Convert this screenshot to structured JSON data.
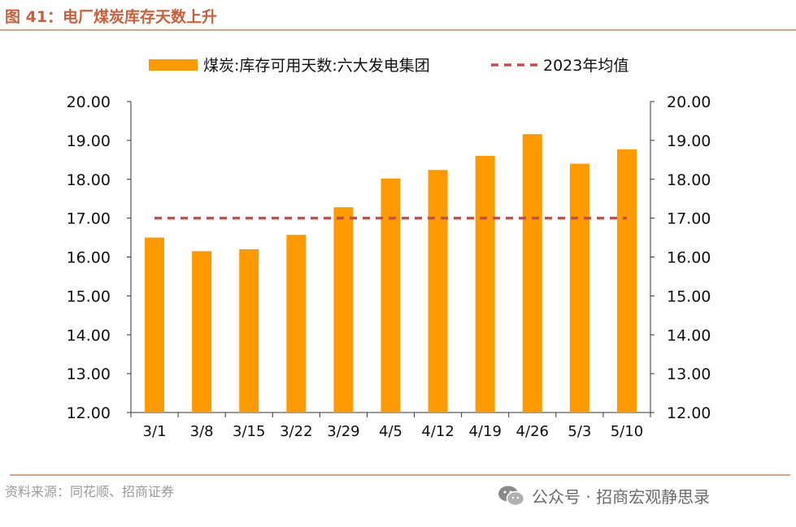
{
  "figure": {
    "title": "图 41：电厂煤炭库存天数上升",
    "source": "资料来源：同花顺、招商证券",
    "watermark": "公众号 · 招商宏观静思录",
    "watermark_icon": "wechat-icon"
  },
  "chart_data": {
    "type": "bar",
    "title": "",
    "xlabel": "",
    "ylabel": "",
    "categories": [
      "3/1",
      "3/8",
      "3/15",
      "3/22",
      "3/29",
      "4/5",
      "4/12",
      "4/19",
      "4/26",
      "5/3",
      "5/10"
    ],
    "series": [
      {
        "name": "煤炭:库存可用天数:六大发电集团",
        "type": "bar",
        "color": "#FF9900",
        "values": [
          16.5,
          16.15,
          16.2,
          16.57,
          17.28,
          18.02,
          18.24,
          18.6,
          19.16,
          18.4,
          18.77
        ]
      },
      {
        "name": "2023年均值",
        "type": "line",
        "style": "dashed",
        "color": "#C0504D",
        "values": [
          17.0,
          17.0,
          17.0,
          17.0,
          17.0,
          17.0,
          17.0,
          17.0,
          17.0,
          17.0,
          17.0
        ]
      }
    ],
    "ylim": [
      12,
      20
    ],
    "yticks": [
      "12.00",
      "13.00",
      "14.00",
      "15.00",
      "16.00",
      "17.00",
      "18.00",
      "19.00",
      "20.00"
    ],
    "secondary_yaxis": true,
    "grid": false,
    "legend_position": "top"
  }
}
